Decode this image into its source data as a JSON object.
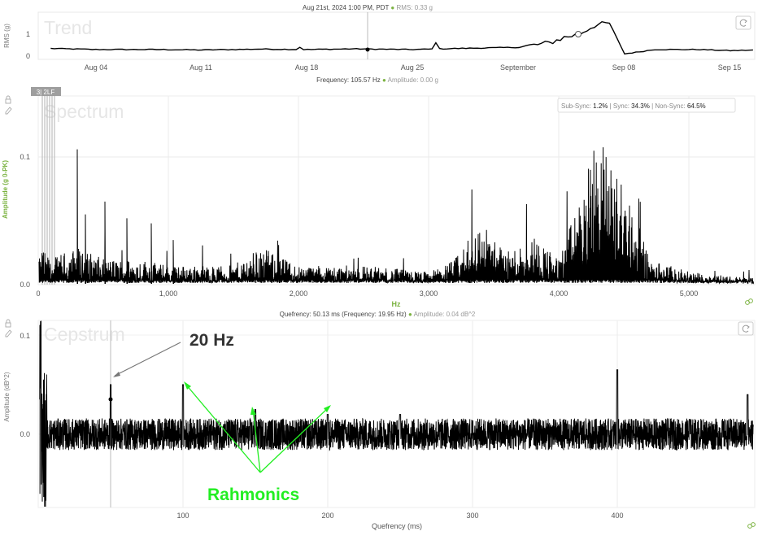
{
  "trend": {
    "header": "Aug 21st, 2024 1:00 PM, PDT",
    "stat": "RMS: 0.33 g",
    "watermark": "Trend",
    "ylabel": "RMS (g)",
    "ytick_labels": [
      "1",
      "0"
    ],
    "xtick_labels": [
      "Aug 04",
      "Aug 11",
      "Aug 18",
      "Aug 25",
      "September",
      "Sep 08",
      "Sep 15"
    ],
    "reset_icon": "refresh-icon"
  },
  "spectrum": {
    "header_freq": "Frequency: 105.57 Hz",
    "header_amp": "Amplitude: 0.00 g",
    "watermark": "Spectrum",
    "ylabel": "Amplitude (g 0-PK)",
    "xlabel": "Hz",
    "marker_tag": "3| 2LF",
    "ytick_labels": [
      "0.1",
      "0.0"
    ],
    "xtick_labels": [
      "0",
      "1,000",
      "2,000",
      "3,000",
      "4,000",
      "5,000"
    ],
    "sync_box": {
      "sub_label": "Sub-Sync:",
      "sub_value": "1.2%",
      "sync_label": "| Sync:",
      "sync_value": "34.3%",
      "non_label": "| Non-Sync:",
      "non_value": "64.5%"
    },
    "icons": [
      "lock-icon",
      "edit-icon",
      "link-icon"
    ]
  },
  "cepstrum": {
    "header_q": "Quefrency: 50.13 ms (Frequency: 19.95 Hz)",
    "header_amp": "Amplitude: 0.04 dB^2",
    "watermark": "Cepstrum",
    "ylabel": "Amplitude (dB^2)",
    "xlabel": "Quefrency (ms)",
    "ytick_labels": [
      "0.1",
      "0.0"
    ],
    "xtick_labels": [
      "100",
      "200",
      "300",
      "400"
    ],
    "annotation_20hz": "20 Hz",
    "annotation_rahmonics": "Rahmonics",
    "icons": [
      "lock-icon",
      "edit-icon",
      "refresh-icon",
      "link-icon"
    ]
  },
  "colors": {
    "line": "#000000",
    "accent_green": "#7cb342",
    "annotation_green": "#22ee22",
    "annotation_text": "#333333",
    "grid": "#e8e8e8"
  },
  "chart_data": [
    {
      "type": "line",
      "name": "trend",
      "x": [
        "Aug 01",
        "Aug 04",
        "Aug 08",
        "Aug 11",
        "Aug 15",
        "Aug 18",
        "Aug 21",
        "Aug 25",
        "Aug 28",
        "Sep 01",
        "Sep 03",
        "Sep 04",
        "Sep 05",
        "Sep 06",
        "Sep 07",
        "Sep 08",
        "Sep 10",
        "Sep 13",
        "Sep 15",
        "Sep 17"
      ],
      "y": [
        0.35,
        0.3,
        0.3,
        0.28,
        0.32,
        0.3,
        0.33,
        0.3,
        0.35,
        0.4,
        0.6,
        0.85,
        1.0,
        1.4,
        1.5,
        0.1,
        0.3,
        0.3,
        0.25,
        0.28
      ],
      "ylim": [
        0,
        1.7
      ]
    },
    {
      "type": "line",
      "name": "spectrum",
      "x": [
        0,
        100,
        300,
        500,
        800,
        1000,
        1500,
        1700,
        2000,
        2500,
        3000,
        3200,
        3400,
        3600,
        3800,
        4000,
        4200,
        4300,
        4500,
        4700,
        5000,
        5500
      ],
      "y": [
        0.03,
        0.02,
        0.03,
        0.02,
        0.02,
        0.015,
        0.015,
        0.03,
        0.015,
        0.015,
        0.01,
        0.02,
        0.05,
        0.025,
        0.04,
        0.02,
        0.08,
        0.12,
        0.08,
        0.02,
        0.01,
        0.005
      ],
      "ylim": [
        0,
        0.14
      ],
      "xlim": [
        0,
        5500
      ]
    },
    {
      "type": "line",
      "name": "cepstrum",
      "x": [
        1,
        10,
        50,
        60,
        100,
        110,
        150,
        160,
        200,
        250,
        300,
        350,
        400,
        450,
        490
      ],
      "y": [
        0.1,
        0.0,
        0.05,
        0.0,
        0.05,
        0.0,
        0.02,
        0.0,
        0.015,
        0.01,
        0.005,
        0.005,
        0.06,
        0.01,
        0.04
      ],
      "ylim": [
        -0.06,
        0.12
      ],
      "xlim": [
        0,
        495
      ]
    }
  ]
}
